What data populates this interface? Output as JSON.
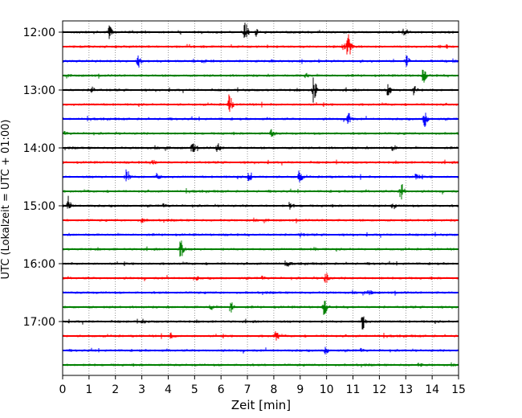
{
  "chart_data": {
    "type": "line",
    "title": "",
    "xlabel": "Zeit  [min]",
    "ylabel": "UTC (Lokalzeit = UTC + 01:00)",
    "xlim": [
      0,
      15
    ],
    "x_ticks": [
      0,
      1,
      2,
      3,
      4,
      5,
      6,
      7,
      8,
      9,
      10,
      11,
      12,
      13,
      14,
      15
    ],
    "y_tick_labels": [
      "12:00",
      "13:00",
      "14:00",
      "15:00",
      "16:00",
      "17:00"
    ],
    "grid": "vertical dotted",
    "trace_interval_min": 15,
    "trace_colors": [
      "#000000",
      "#ff0000",
      "#0000ff",
      "#008000"
    ],
    "traces": [
      {
        "start": "12:00",
        "events": [
          [
            1.75,
            0.55
          ],
          [
            6.9,
            0.75
          ],
          [
            7.3,
            0.3
          ],
          [
            12.9,
            0.2
          ]
        ]
      },
      {
        "start": "12:15",
        "events": [
          [
            10.8,
            0.95
          ],
          [
            10.6,
            0.25
          ]
        ]
      },
      {
        "start": "12:30",
        "events": [
          [
            2.85,
            0.5
          ],
          [
            13.0,
            0.45
          ],
          [
            5.3,
            0.15
          ]
        ]
      },
      {
        "start": "12:45",
        "events": [
          [
            13.65,
            0.5
          ],
          [
            9.2,
            0.15
          ]
        ]
      },
      {
        "start": "13:00",
        "events": [
          [
            9.5,
            1.0
          ],
          [
            12.3,
            0.45
          ],
          [
            13.3,
            0.5
          ],
          [
            1.1,
            0.2
          ]
        ]
      },
      {
        "start": "13:15",
        "events": [
          [
            6.3,
            0.75
          ]
        ]
      },
      {
        "start": "13:30",
        "events": [
          [
            10.8,
            0.6
          ],
          [
            13.7,
            0.6
          ]
        ]
      },
      {
        "start": "13:45",
        "events": [
          [
            7.9,
            0.3
          ]
        ]
      },
      {
        "start": "14:00",
        "events": [
          [
            4.9,
            0.4
          ],
          [
            5.85,
            0.35
          ],
          [
            12.5,
            0.2
          ]
        ]
      },
      {
        "start": "14:15",
        "events": [
          [
            3.4,
            0.2
          ]
        ]
      },
      {
        "start": "14:30",
        "events": [
          [
            2.4,
            0.7
          ],
          [
            3.55,
            0.35
          ],
          [
            7.05,
            0.45
          ],
          [
            8.95,
            0.45
          ],
          [
            13.4,
            0.3
          ]
        ]
      },
      {
        "start": "14:45",
        "events": [
          [
            12.8,
            0.85
          ]
        ]
      },
      {
        "start": "15:00",
        "events": [
          [
            0.2,
            0.55
          ],
          [
            8.6,
            0.3
          ],
          [
            12.5,
            0.2
          ]
        ]
      },
      {
        "start": "15:15",
        "events": [
          [
            3.0,
            0.15
          ]
        ]
      },
      {
        "start": "15:30",
        "events": [
          [
            9.0,
            0.15
          ]
        ]
      },
      {
        "start": "15:45",
        "events": [
          [
            4.45,
            0.75
          ],
          [
            9.5,
            0.15
          ]
        ]
      },
      {
        "start": "16:00",
        "events": [
          [
            8.5,
            0.15
          ]
        ]
      },
      {
        "start": "16:15",
        "events": [
          [
            9.95,
            0.45
          ],
          [
            5.0,
            0.2
          ]
        ]
      },
      {
        "start": "16:30",
        "events": [
          [
            11.6,
            0.2
          ]
        ]
      },
      {
        "start": "16:45",
        "events": [
          [
            6.35,
            0.45
          ],
          [
            9.9,
            0.55
          ],
          [
            5.6,
            0.2
          ]
        ]
      },
      {
        "start": "17:00",
        "events": [
          [
            11.35,
            0.55
          ],
          [
            3.0,
            0.15
          ]
        ]
      },
      {
        "start": "17:15",
        "events": [
          [
            8.05,
            0.45
          ],
          [
            4.1,
            0.2
          ]
        ]
      },
      {
        "start": "17:30",
        "events": [
          [
            9.95,
            0.25
          ]
        ]
      },
      {
        "start": "17:45",
        "events": [
          [
            13.5,
            0.12
          ]
        ]
      }
    ]
  }
}
